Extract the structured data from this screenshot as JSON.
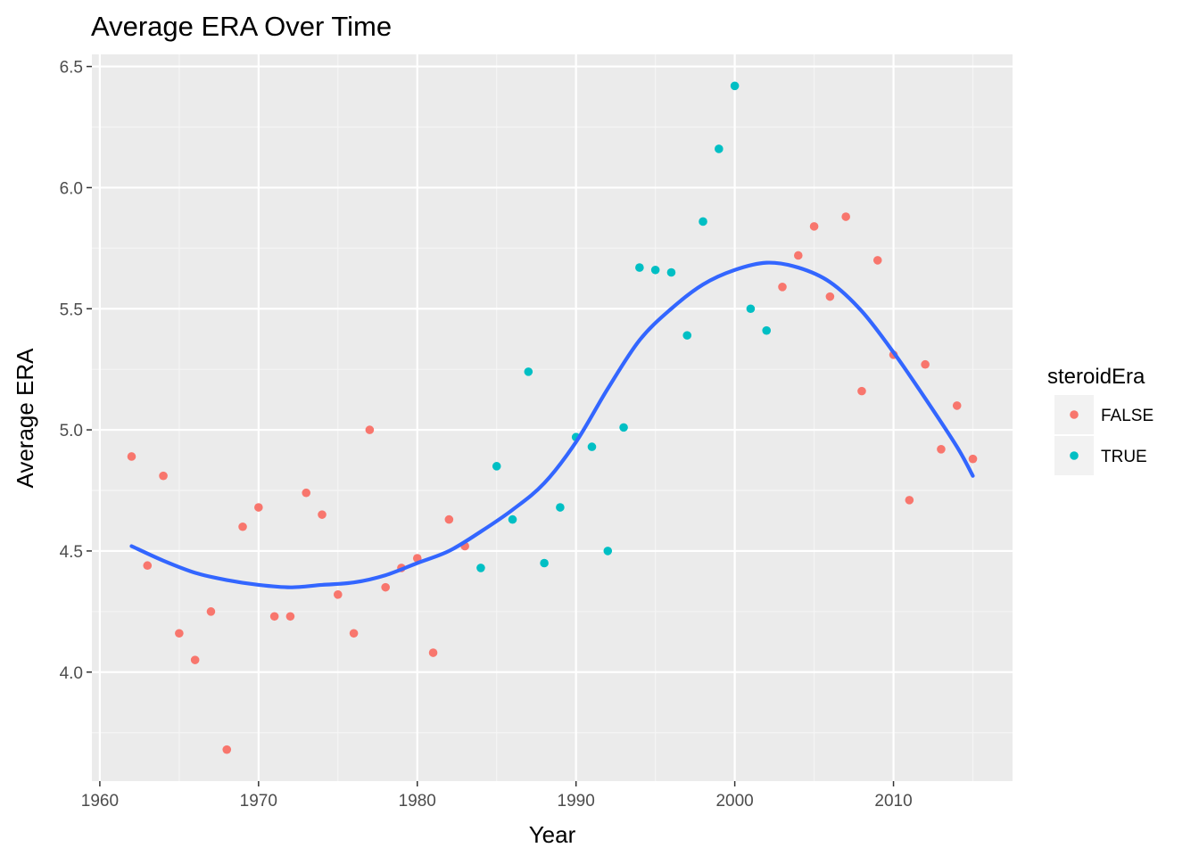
{
  "chart_data": {
    "type": "scatter",
    "title": "Average ERA Over Time",
    "xlabel": "Year",
    "ylabel": "Average ERA",
    "xlim": [
      1959.5,
      2017.5
    ],
    "ylim": [
      3.55,
      6.55
    ],
    "x_ticks": [
      1960,
      1970,
      1980,
      1990,
      2000,
      2010
    ],
    "x_tick_labels": [
      "1960",
      "1970",
      "1980",
      "1990",
      "2000",
      "2010"
    ],
    "y_ticks": [
      4.0,
      4.5,
      5.0,
      5.5,
      6.0,
      6.5
    ],
    "y_tick_labels": [
      "4.0",
      "4.5",
      "5.0",
      "5.5",
      "6.0",
      "6.5"
    ],
    "grid": true,
    "panel_background": "#ebebeb",
    "grid_color": "#ffffff",
    "legend": {
      "title": "steroidEra",
      "placement": "right",
      "entries": [
        {
          "label": "FALSE",
          "color": "#f8766d"
        },
        {
          "label": "TRUE",
          "color": "#00bfc4"
        }
      ]
    },
    "series": [
      {
        "name": "FALSE",
        "color": "#f8766d",
        "points": [
          [
            1962,
            4.89
          ],
          [
            1963,
            4.44
          ],
          [
            1964,
            4.81
          ],
          [
            1965,
            4.16
          ],
          [
            1966,
            4.05
          ],
          [
            1967,
            4.25
          ],
          [
            1968,
            3.68
          ],
          [
            1969,
            4.6
          ],
          [
            1970,
            4.68
          ],
          [
            1971,
            4.23
          ],
          [
            1972,
            4.23
          ],
          [
            1973,
            4.74
          ],
          [
            1974,
            4.65
          ],
          [
            1975,
            4.32
          ],
          [
            1976,
            4.16
          ],
          [
            1977,
            5.0
          ],
          [
            1978,
            4.35
          ],
          [
            1979,
            4.43
          ],
          [
            1980,
            4.47
          ],
          [
            1981,
            4.08
          ],
          [
            1982,
            4.63
          ],
          [
            1983,
            4.52
          ],
          [
            2003,
            5.59
          ],
          [
            2004,
            5.72
          ],
          [
            2005,
            5.84
          ],
          [
            2006,
            5.55
          ],
          [
            2007,
            5.88
          ],
          [
            2008,
            5.16
          ],
          [
            2009,
            5.7
          ],
          [
            2010,
            5.31
          ],
          [
            2011,
            4.71
          ],
          [
            2012,
            5.27
          ],
          [
            2013,
            4.92
          ],
          [
            2014,
            5.1
          ],
          [
            2015,
            4.88
          ]
        ]
      },
      {
        "name": "TRUE",
        "color": "#00bfc4",
        "points": [
          [
            1984,
            4.43
          ],
          [
            1985,
            4.85
          ],
          [
            1986,
            4.63
          ],
          [
            1987,
            5.24
          ],
          [
            1988,
            4.45
          ],
          [
            1989,
            4.68
          ],
          [
            1990,
            4.97
          ],
          [
            1991,
            4.93
          ],
          [
            1992,
            4.5
          ],
          [
            1993,
            5.01
          ],
          [
            1994,
            5.67
          ],
          [
            1995,
            5.66
          ],
          [
            1996,
            5.65
          ],
          [
            1997,
            5.39
          ],
          [
            1998,
            5.86
          ],
          [
            1999,
            6.16
          ],
          [
            2000,
            6.42
          ],
          [
            2001,
            5.5
          ],
          [
            2002,
            5.41
          ]
        ]
      }
    ],
    "smooth_line": {
      "color": "#3366ff",
      "points": [
        [
          1962,
          4.52
        ],
        [
          1964,
          4.46
        ],
        [
          1966,
          4.41
        ],
        [
          1968,
          4.38
        ],
        [
          1970,
          4.36
        ],
        [
          1972,
          4.35
        ],
        [
          1974,
          4.36
        ],
        [
          1976,
          4.37
        ],
        [
          1978,
          4.4
        ],
        [
          1980,
          4.45
        ],
        [
          1982,
          4.5
        ],
        [
          1984,
          4.58
        ],
        [
          1986,
          4.67
        ],
        [
          1988,
          4.78
        ],
        [
          1990,
          4.95
        ],
        [
          1992,
          5.17
        ],
        [
          1994,
          5.37
        ],
        [
          1996,
          5.5
        ],
        [
          1998,
          5.6
        ],
        [
          2000,
          5.66
        ],
        [
          2002,
          5.69
        ],
        [
          2004,
          5.67
        ],
        [
          2006,
          5.61
        ],
        [
          2008,
          5.49
        ],
        [
          2010,
          5.32
        ],
        [
          2012,
          5.13
        ],
        [
          2014,
          4.93
        ],
        [
          2015,
          4.81
        ]
      ]
    }
  }
}
